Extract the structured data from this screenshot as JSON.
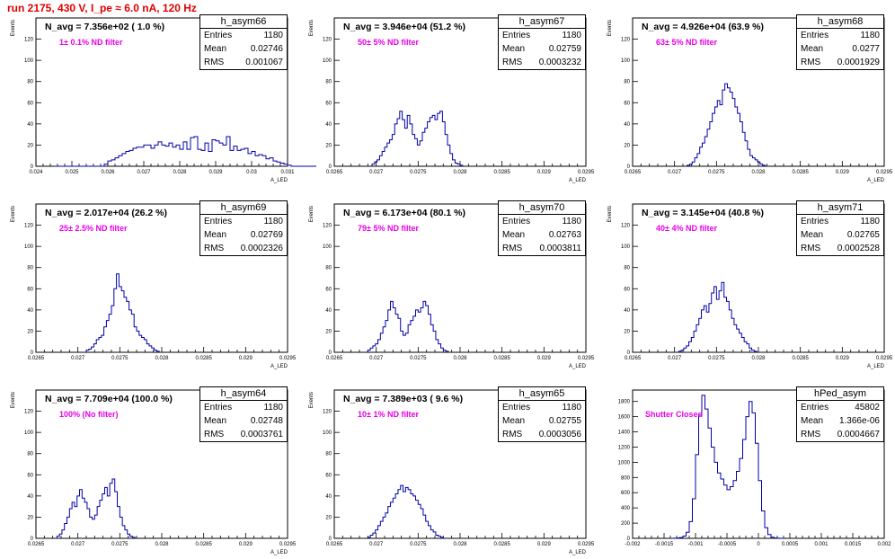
{
  "run_title": "run 2175,   430 V, I_pe ≈ 6.0 nA, 120 Hz",
  "stat_labels": {
    "entries": "Entries",
    "mean": "Mean",
    "rms": "RMS"
  },
  "colors": {
    "histogram": "#0000a8",
    "title": "#e00000",
    "filter_label": "#e800e8"
  },
  "chart_data": [
    {
      "type": "bar",
      "name": "h_asym66",
      "navg": "N_avg = 7.356e+02 ( 1.0 %)",
      "filter": "1± 0.1% ND filter",
      "entries": "1180",
      "mean": "0.02746",
      "rms": "0.001067",
      "xlabel": "A_LED",
      "ylabel": "Events",
      "xlim": [
        0.024,
        0.031
      ],
      "ylim": [
        0,
        140
      ],
      "xticks": [
        "0.024",
        "0.025",
        "0.026",
        "0.027",
        "0.028",
        "0.029",
        "0.03",
        "0.031"
      ],
      "xtick_values": [
        0.024,
        0.025,
        0.026,
        0.027,
        0.028,
        0.029,
        0.03,
        0.031
      ],
      "yticks": [
        "0",
        "20",
        "40",
        "60",
        "80",
        "100",
        "120"
      ],
      "bin_start": 0.0245,
      "bin_width": 0.0001,
      "values": [
        0,
        0,
        0,
        0,
        0,
        0,
        0,
        0,
        0,
        0,
        0,
        0,
        0,
        0,
        2,
        5,
        6,
        8,
        10,
        12,
        14,
        15,
        17,
        18,
        18,
        20,
        20,
        17,
        20,
        23,
        20,
        19,
        22,
        18,
        20,
        16,
        23,
        16,
        27,
        28,
        16,
        15,
        22,
        14,
        25,
        24,
        22,
        20,
        28,
        15,
        19,
        15,
        16,
        17,
        12,
        14,
        10,
        11,
        10,
        7,
        8,
        5,
        4,
        3,
        2,
        1,
        0,
        0,
        0,
        0,
        0,
        0,
        0
      ]
    },
    {
      "type": "bar",
      "name": "h_asym67",
      "navg": "N_avg = 3.946e+04 (51.2 %)",
      "filter": "50± 5% ND filter",
      "entries": "1180",
      "mean": "0.02759",
      "rms": "0.0003232",
      "xlabel": "A_LED",
      "ylabel": "Events",
      "xlim": [
        0.0265,
        0.0295
      ],
      "ylim": [
        0,
        140
      ],
      "xticks": [
        "0.0265",
        "0.027",
        "0.0275",
        "0.028",
        "0.0285",
        "0.029",
        "0.0295"
      ],
      "xtick_values": [
        0.0265,
        0.027,
        0.0275,
        0.028,
        0.0285,
        0.029,
        0.0295
      ],
      "yticks": [
        "0",
        "20",
        "40",
        "60",
        "80",
        "100",
        "120"
      ],
      "bin_start": 0.02695,
      "bin_width": 3e-05,
      "values": [
        2,
        4,
        6,
        10,
        14,
        18,
        22,
        25,
        30,
        40,
        45,
        52,
        44,
        36,
        48,
        40,
        30,
        26,
        20,
        24,
        32,
        36,
        42,
        46,
        48,
        44,
        50,
        52,
        42,
        30,
        20,
        12,
        6,
        3,
        2,
        1
      ]
    },
    {
      "type": "bar",
      "name": "h_asym68",
      "navg": "N_avg = 4.926e+04 (63.9 %)",
      "filter": "63± 5% ND filter",
      "entries": "1180",
      "mean": "0.0277",
      "rms": "0.0001929",
      "xlabel": "A_LED",
      "ylabel": "Events",
      "xlim": [
        0.0265,
        0.0295
      ],
      "ylim": [
        0,
        140
      ],
      "xticks": [
        "0.0265",
        "0.027",
        "0.0275",
        "0.028",
        "0.0285",
        "0.029",
        "0.0295"
      ],
      "xtick_values": [
        0.0265,
        0.027,
        0.0275,
        0.028,
        0.0285,
        0.029,
        0.0295
      ],
      "yticks": [
        "0",
        "20",
        "40",
        "60",
        "80",
        "100",
        "120"
      ],
      "bin_start": 0.02715,
      "bin_width": 3e-05,
      "values": [
        1,
        2,
        4,
        8,
        12,
        18,
        22,
        28,
        35,
        42,
        50,
        56,
        62,
        58,
        72,
        78,
        74,
        70,
        64,
        56,
        50,
        42,
        32,
        24,
        16,
        10,
        8,
        6,
        4,
        2,
        1
      ]
    },
    {
      "type": "bar",
      "name": "h_asym69",
      "navg": "N_avg = 2.017e+04 (26.2 %)",
      "filter": "25± 2.5% ND filter",
      "entries": "1180",
      "mean": "0.02769",
      "rms": "0.0002326",
      "xlabel": "A_LED",
      "ylabel": "Events",
      "xlim": [
        0.0265,
        0.0295
      ],
      "ylim": [
        0,
        140
      ],
      "xticks": [
        "0.0265",
        "0.027",
        "0.0275",
        "0.028",
        "0.0285",
        "0.029",
        "0.0295"
      ],
      "xtick_values": [
        0.0265,
        0.027,
        0.0275,
        0.028,
        0.0285,
        0.029,
        0.0295
      ],
      "yticks": [
        "0",
        "20",
        "40",
        "60",
        "80",
        "100",
        "120"
      ],
      "bin_start": 0.0271,
      "bin_width": 3e-05,
      "values": [
        2,
        3,
        5,
        8,
        12,
        14,
        16,
        24,
        30,
        36,
        44,
        60,
        74,
        62,
        58,
        52,
        48,
        40,
        36,
        24,
        20,
        16,
        14,
        12,
        8,
        6,
        4,
        2,
        1
      ]
    },
    {
      "type": "bar",
      "name": "h_asym70",
      "navg": "N_avg = 6.173e+04 (80.1 %)",
      "filter": "79± 5% ND filter",
      "entries": "1180",
      "mean": "0.02763",
      "rms": "0.0003811",
      "xlabel": "A_LED",
      "ylabel": "Events",
      "xlim": [
        0.0265,
        0.0295
      ],
      "ylim": [
        0,
        140
      ],
      "xticks": [
        "0.0265",
        "0.027",
        "0.0275",
        "0.028",
        "0.0285",
        "0.029",
        "0.0295"
      ],
      "xtick_values": [
        0.0265,
        0.027,
        0.0275,
        0.028,
        0.0285,
        0.029,
        0.0295
      ],
      "yticks": [
        "0",
        "20",
        "40",
        "60",
        "80",
        "100",
        "120"
      ],
      "bin_start": 0.0269,
      "bin_width": 3e-05,
      "values": [
        2,
        4,
        6,
        8,
        12,
        18,
        24,
        30,
        40,
        48,
        42,
        36,
        32,
        20,
        16,
        18,
        26,
        30,
        34,
        40,
        38,
        42,
        48,
        44,
        36,
        26,
        20,
        12,
        8,
        4,
        2,
        1
      ]
    },
    {
      "type": "bar",
      "name": "h_asym71",
      "navg": "N_avg = 3.145e+04 (40.8 %)",
      "filter": "40± 4% ND filter",
      "entries": "1180",
      "mean": "0.02765",
      "rms": "0.0002528",
      "xlabel": "A_LED",
      "ylabel": "Events",
      "xlim": [
        0.0265,
        0.0295
      ],
      "ylim": [
        0,
        140
      ],
      "xticks": [
        "0.0265",
        "0.027",
        "0.0275",
        "0.028",
        "0.0285",
        "0.029",
        "0.0295"
      ],
      "xtick_values": [
        0.0265,
        0.027,
        0.0275,
        0.028,
        0.0285,
        0.029,
        0.0295
      ],
      "yticks": [
        "0",
        "20",
        "40",
        "60",
        "80",
        "100",
        "120"
      ],
      "bin_start": 0.02705,
      "bin_width": 3e-05,
      "values": [
        1,
        2,
        4,
        6,
        10,
        14,
        20,
        26,
        32,
        40,
        44,
        38,
        46,
        56,
        62,
        50,
        58,
        66,
        52,
        48,
        40,
        32,
        26,
        22,
        18,
        14,
        10,
        8,
        4,
        2,
        1
      ]
    },
    {
      "type": "bar",
      "name": "h_asym64",
      "navg": "N_avg = 7.709e+04 (100.0 %)",
      "filter": "100% (No filter)",
      "entries": "1180",
      "mean": "0.02748",
      "rms": "0.0003761",
      "xlabel": "A_LED",
      "ylabel": "Events",
      "xlim": [
        0.0265,
        0.0295
      ],
      "ylim": [
        0,
        140
      ],
      "xticks": [
        "0.0265",
        "0.027",
        "0.0275",
        "0.028",
        "0.0285",
        "0.029",
        "0.0295"
      ],
      "xtick_values": [
        0.0265,
        0.027,
        0.0275,
        0.028,
        0.0285,
        0.029,
        0.0295
      ],
      "yticks": [
        "0",
        "20",
        "40",
        "60",
        "80",
        "100",
        "120"
      ],
      "bin_start": 0.02675,
      "bin_width": 3e-05,
      "values": [
        2,
        4,
        8,
        14,
        20,
        28,
        34,
        30,
        40,
        46,
        38,
        34,
        28,
        20,
        18,
        22,
        30,
        36,
        42,
        48,
        40,
        52,
        56,
        44,
        30,
        20,
        12,
        8,
        4,
        2,
        1
      ]
    },
    {
      "type": "bar",
      "name": "h_asym65",
      "navg": "N_avg = 7.389e+03 ( 9.6 %)",
      "filter": "10± 1% ND filter",
      "entries": "1180",
      "mean": "0.02755",
      "rms": "0.0003056",
      "xlabel": "A_LED",
      "ylabel": "Events",
      "xlim": [
        0.0265,
        0.0295
      ],
      "ylim": [
        0,
        140
      ],
      "xticks": [
        "0.0265",
        "0.027",
        "0.0275",
        "0.028",
        "0.0285",
        "0.029",
        "0.0295"
      ],
      "xtick_values": [
        0.0265,
        0.027,
        0.0275,
        0.028,
        0.0285,
        0.029,
        0.0295
      ],
      "yticks": [
        "0",
        "20",
        "40",
        "60",
        "80",
        "100",
        "120"
      ],
      "bin_start": 0.0269,
      "bin_width": 3e-05,
      "values": [
        1,
        3,
        5,
        8,
        12,
        16,
        20,
        24,
        30,
        34,
        38,
        42,
        46,
        50,
        44,
        48,
        46,
        42,
        40,
        36,
        32,
        28,
        22,
        16,
        12,
        8,
        6,
        3,
        2,
        1
      ]
    },
    {
      "type": "bar",
      "name": "hPed_asym",
      "navg": "",
      "filter": "Shutter Closed",
      "entries": "45802",
      "mean": "1.366e-06",
      "rms": "0.0004667",
      "xlabel": "",
      "ylabel": "",
      "xlim": [
        -0.002,
        0.002
      ],
      "ylim": [
        0,
        1950
      ],
      "xticks": [
        "-0.002",
        "-0.0015",
        "-0.001",
        "-0.0005",
        "0",
        "0.0005",
        "0.001",
        "0.0015",
        "0.002"
      ],
      "xtick_values": [
        -0.002,
        -0.0015,
        -0.001,
        -0.0005,
        0,
        0.0005,
        0.001,
        0.0015,
        0.002
      ],
      "yticks": [
        "0",
        "200",
        "400",
        "600",
        "800",
        "1000",
        "1200",
        "1400",
        "1600",
        "1800"
      ],
      "bin_start": -0.0014,
      "bin_width": 5e-05,
      "values": [
        0,
        2,
        5,
        10,
        30,
        80,
        220,
        520,
        1100,
        1620,
        1880,
        1700,
        1450,
        1200,
        1000,
        860,
        780,
        700,
        640,
        680,
        760,
        880,
        1050,
        1300,
        1600,
        1800,
        1650,
        1250,
        760,
        360,
        140,
        50,
        15,
        5,
        2,
        0
      ]
    }
  ]
}
